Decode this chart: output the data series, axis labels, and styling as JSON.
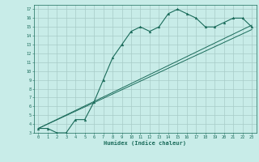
{
  "xlabel": "Humidex (Indice chaleur)",
  "bg_color": "#c8ece8",
  "grid_color": "#a8ccc8",
  "line_color": "#1a6b5a",
  "curve1_x": [
    0,
    1,
    2,
    3,
    4,
    5,
    6,
    7,
    8,
    9,
    10,
    11,
    12,
    13,
    14,
    15,
    16,
    17,
    18,
    19,
    20,
    21,
    22,
    23
  ],
  "curve1_y": [
    3.5,
    3.5,
    3.0,
    3.0,
    4.5,
    4.5,
    6.5,
    9.0,
    11.5,
    13.0,
    14.5,
    15.0,
    14.5,
    15.0,
    16.5,
    17.0,
    16.5,
    16.0,
    15.0,
    15.0,
    15.5,
    16.0,
    16.0,
    15.0
  ],
  "curve2_x": [
    0,
    23
  ],
  "curve2_y": [
    3.5,
    15.2
  ],
  "curve3_x": [
    0,
    23
  ],
  "curve3_y": [
    3.5,
    14.7
  ],
  "xlim": [
    -0.5,
    23.5
  ],
  "ylim": [
    3,
    17.5
  ],
  "xticks": [
    0,
    1,
    2,
    3,
    4,
    5,
    6,
    7,
    8,
    9,
    10,
    11,
    12,
    13,
    14,
    15,
    16,
    17,
    18,
    19,
    20,
    21,
    22,
    23
  ],
  "yticks": [
    3,
    4,
    5,
    6,
    7,
    8,
    9,
    10,
    11,
    12,
    13,
    14,
    15,
    16,
    17
  ],
  "xtick_labels": [
    "0",
    "1",
    "2",
    "3",
    "4",
    "5",
    "6",
    "7",
    "8",
    "9",
    "10",
    "11",
    "12",
    "13",
    "14",
    "15",
    "16",
    "17",
    "18",
    "19",
    "20",
    "21",
    "22",
    "23"
  ],
  "ytick_labels": [
    "3",
    "4",
    "5",
    "6",
    "7",
    "8",
    "9",
    "10",
    "11",
    "12",
    "13",
    "14",
    "15",
    "16",
    "17"
  ]
}
